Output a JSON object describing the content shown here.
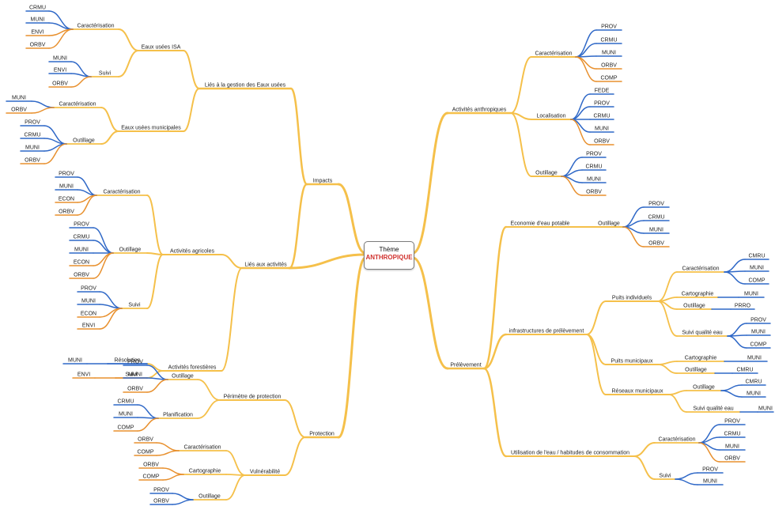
{
  "center": {
    "title": "Thème",
    "subtitle": "ANTHROPIQUE"
  },
  "colors": {
    "branch": "#f5c04a",
    "leaf_blue": "#2f68c7",
    "leaf_orange": "#e8902e",
    "center_red": "#d0312d"
  },
  "labels": {
    "impacts": "Impacts",
    "lies_gestion": "Liés à la gestion des Eaux usées",
    "eaux_isa": "Eaux usées ISA",
    "isa_carac": "Caractérisation",
    "isa_carac_l1": "CRMU",
    "isa_carac_l2": "MUNI",
    "isa_carac_l3": "ENVI",
    "isa_carac_l4": "ORBV",
    "isa_suivi": "Suivi",
    "isa_suivi_l1": "MUNI",
    "isa_suivi_l2": "ENVI",
    "isa_suivi_l3": "ORBV",
    "eaux_mun": "Eaux usées municipales",
    "mun_carac": "Caractérisation",
    "mun_carac_l1": "MUNI",
    "mun_carac_l2": "ORBV",
    "mun_out": "Outillage",
    "mun_out_l1": "PROV",
    "mun_out_l2": "CRMU",
    "mun_out_l3": "MUNI",
    "mun_out_l4": "ORBV",
    "lies_act": "Liés aux activités",
    "act_agri": "Activités agricoles",
    "agri_carac": "Caractérisation",
    "agri_carac_l1": "PROV",
    "agri_carac_l2": "MUNI",
    "agri_carac_l3": "ECON",
    "agri_carac_l4": "ORBV",
    "agri_out": "Outillage",
    "agri_out_l1": "PROV",
    "agri_out_l2": "CRMU",
    "agri_out_l3": "MUNI",
    "agri_out_l4": "ECON",
    "agri_out_l5": "ORBV",
    "agri_suivi": "Suivi",
    "agri_suivi_l1": "PROV",
    "agri_suivi_l2": "MUNI",
    "agri_suivi_l3": "ECON",
    "agri_suivi_l4": "ENVI",
    "act_for": "Activités forestières",
    "for_res": "Résolution",
    "for_res_l1": "MUNI",
    "for_suivi": "Suivi",
    "for_suivi_l1": "ENVI",
    "protection": "Protection",
    "perimetre": "Périmètre de protection",
    "per_out": "Outillage",
    "per_out_l1": "PROV",
    "per_out_l2": "MUNI",
    "per_out_l3": "ORBV",
    "per_plan": "Planification",
    "per_plan_l1": "CRMU",
    "per_plan_l2": "MUNI",
    "per_plan_l3": "COMP",
    "vulnerabilite": "Vulnérabilité",
    "vul_carac": "Caractérisation",
    "vul_carac_l1": "ORBV",
    "vul_carac_l2": "COMP",
    "vul_carto": "Cartographie",
    "vul_carto_l1": "ORBV",
    "vul_carto_l2": "COMP",
    "vul_out": "Outillage",
    "vul_out_l1": "PROV",
    "vul_out_l2": "ORBV",
    "act_anth": "Activités anthropiques",
    "anth_carac": "Caractérisation",
    "anth_carac_l1": "PROV",
    "anth_carac_l2": "CRMU",
    "anth_carac_l3": "MUNI",
    "anth_carac_l4": "ORBV",
    "anth_carac_l5": "COMP",
    "anth_loc": "Localisation",
    "anth_loc_l1": "FEDE",
    "anth_loc_l2": "PROV",
    "anth_loc_l3": "CRMU",
    "anth_loc_l4": "MUNI",
    "anth_loc_l5": "ORBV",
    "anth_out": "Outillage",
    "anth_out_l1": "PROV",
    "anth_out_l2": "CRMU",
    "anth_out_l3": "MUNI",
    "anth_out_l4": "ORBV",
    "prelevement": "Prélèvement",
    "eco_eau": "Economie d'eau potable",
    "eco_out": "Outillage",
    "eco_out_l1": "PROV",
    "eco_out_l2": "CRMU",
    "eco_out_l3": "MUNI",
    "eco_out_l4": "ORBV",
    "infra": "infrastructures de prélèvement",
    "puits_ind": "Puits individuels",
    "pi_carac": "Caractérisation",
    "pi_carac_l1": "CMRU",
    "pi_carac_l2": "MUNI",
    "pi_carac_l3": "COMP",
    "pi_carto": "Cartographie",
    "pi_carto_l1": "MUNI",
    "pi_out": "Outillage",
    "pi_out_l1": "PRRO",
    "pi_suivi": "Suivi qualité eau",
    "pi_suivi_l1": "PROV",
    "pi_suivi_l2": "MUNI",
    "pi_suivi_l3": "COMP",
    "puits_mun": "Puits municipaux",
    "pm_carto": "Cartographie",
    "pm_carto_l1": "MUNI",
    "pm_out": "Outillage",
    "pm_out_l1": "CMRU",
    "reseaux": "Réseaux municipaux",
    "rm_out": "Outillage",
    "rm_out_l1": "CMRU",
    "rm_out_l2": "MUNI",
    "rm_suivi": "Suivi qualité eau",
    "rm_suivi_l1": "MUNI",
    "utilisation": "Utilisation de l'eau / habitudes de consommation",
    "ut_carac": "Caractérisation",
    "ut_carac_l1": "PROV",
    "ut_carac_l2": "CRMU",
    "ut_carac_l3": "MUNI",
    "ut_carac_l4": "ORBV",
    "ut_suivi": "Suivi",
    "ut_suivi_l1": "PROV",
    "ut_suivi_l2": "MUNI"
  }
}
